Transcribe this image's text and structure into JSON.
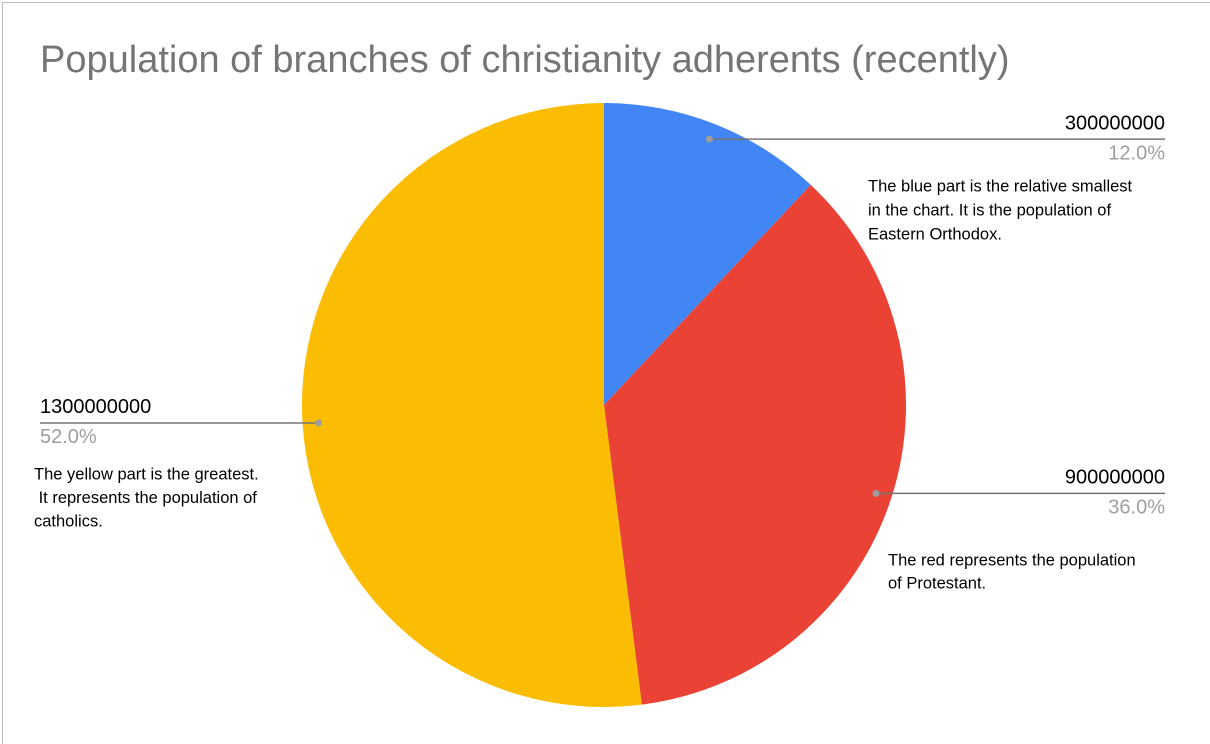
{
  "chart_data": {
    "type": "pie",
    "title": "Population of branches of christianity adherents (recently)",
    "values": [
      300000000,
      900000000,
      1300000000
    ],
    "percent_labels": [
      "12.0%",
      "36.0%",
      "52.0%"
    ],
    "colors": [
      "#4285f4",
      "#ea4335",
      "#fbbc04"
    ],
    "annotations": [
      [
        "The blue part is the relative smallest",
        "in the chart. It is the population of",
        "Eastern Orthodox."
      ],
      [
        "The red represents the population",
        "of Protestant."
      ],
      [
        "The yellow part is the greatest.",
        " It represents the population of",
        "catholics."
      ]
    ]
  }
}
